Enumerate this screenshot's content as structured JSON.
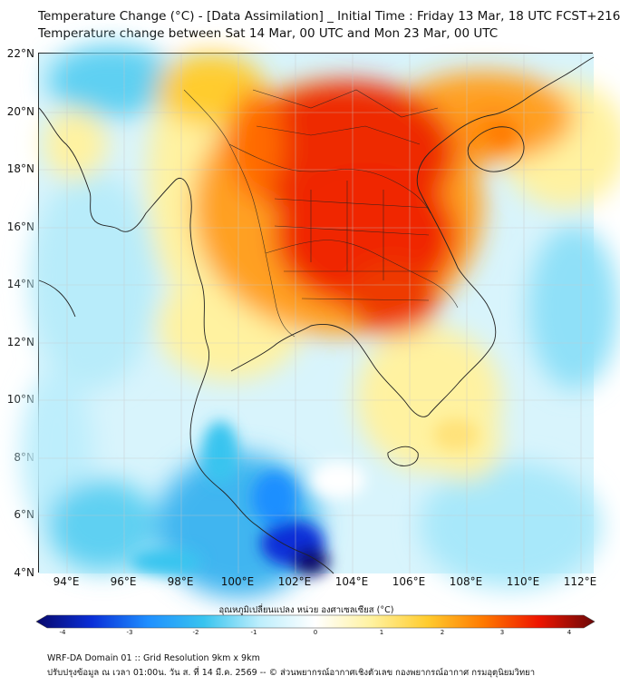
{
  "title_line1": "Temperature Change (°C) - [Data Assimilation] _ Initial Time : Friday 13 Mar, 18 UTC FCST+216",
  "title_line2": "Temperature change between Sat 14 Mar, 00 UTC and Mon 23 Mar, 00 UTC",
  "lat_labels": [
    "22°N",
    "20°N",
    "18°N",
    "16°N",
    "14°N",
    "12°N",
    "10°N",
    "8°N",
    "6°N",
    "4°N"
  ],
  "lon_labels": [
    "94°E",
    "96°E",
    "98°E",
    "100°E",
    "102°E",
    "104°E",
    "106°E",
    "108°E",
    "110°E",
    "112°E"
  ],
  "colorbar": {
    "title": "อุณหภูมิเปลี่ยนแปลง หน่วย องศาเซลเซียส (°C)",
    "ticks": [
      "-4",
      "-3",
      "-2",
      "-1",
      "0",
      "1",
      "2",
      "3",
      "4"
    ],
    "min": -4,
    "max": 4,
    "colors": [
      "#08086b",
      "#0a2fd8",
      "#1f8fff",
      "#38c4ef",
      "#bdeefc",
      "#ffffff",
      "#fff2a0",
      "#ffcc2e",
      "#ff7a00",
      "#ee1500",
      "#6b0808"
    ]
  },
  "footer_line1": "WRF-DA Domain 01 :: Grid Resolution 9km x 9km",
  "footer_line2": "ปรับปรุงข้อมูล ณ เวลา 01:00น. วัน ส. ที่ 14 มี.ค. 2569 -- © ส่วนพยากรณ์อากาศเชิงตัวเลข กองพยากรณ์อากาศ กรมอุตุนิยมวิทยา"
}
